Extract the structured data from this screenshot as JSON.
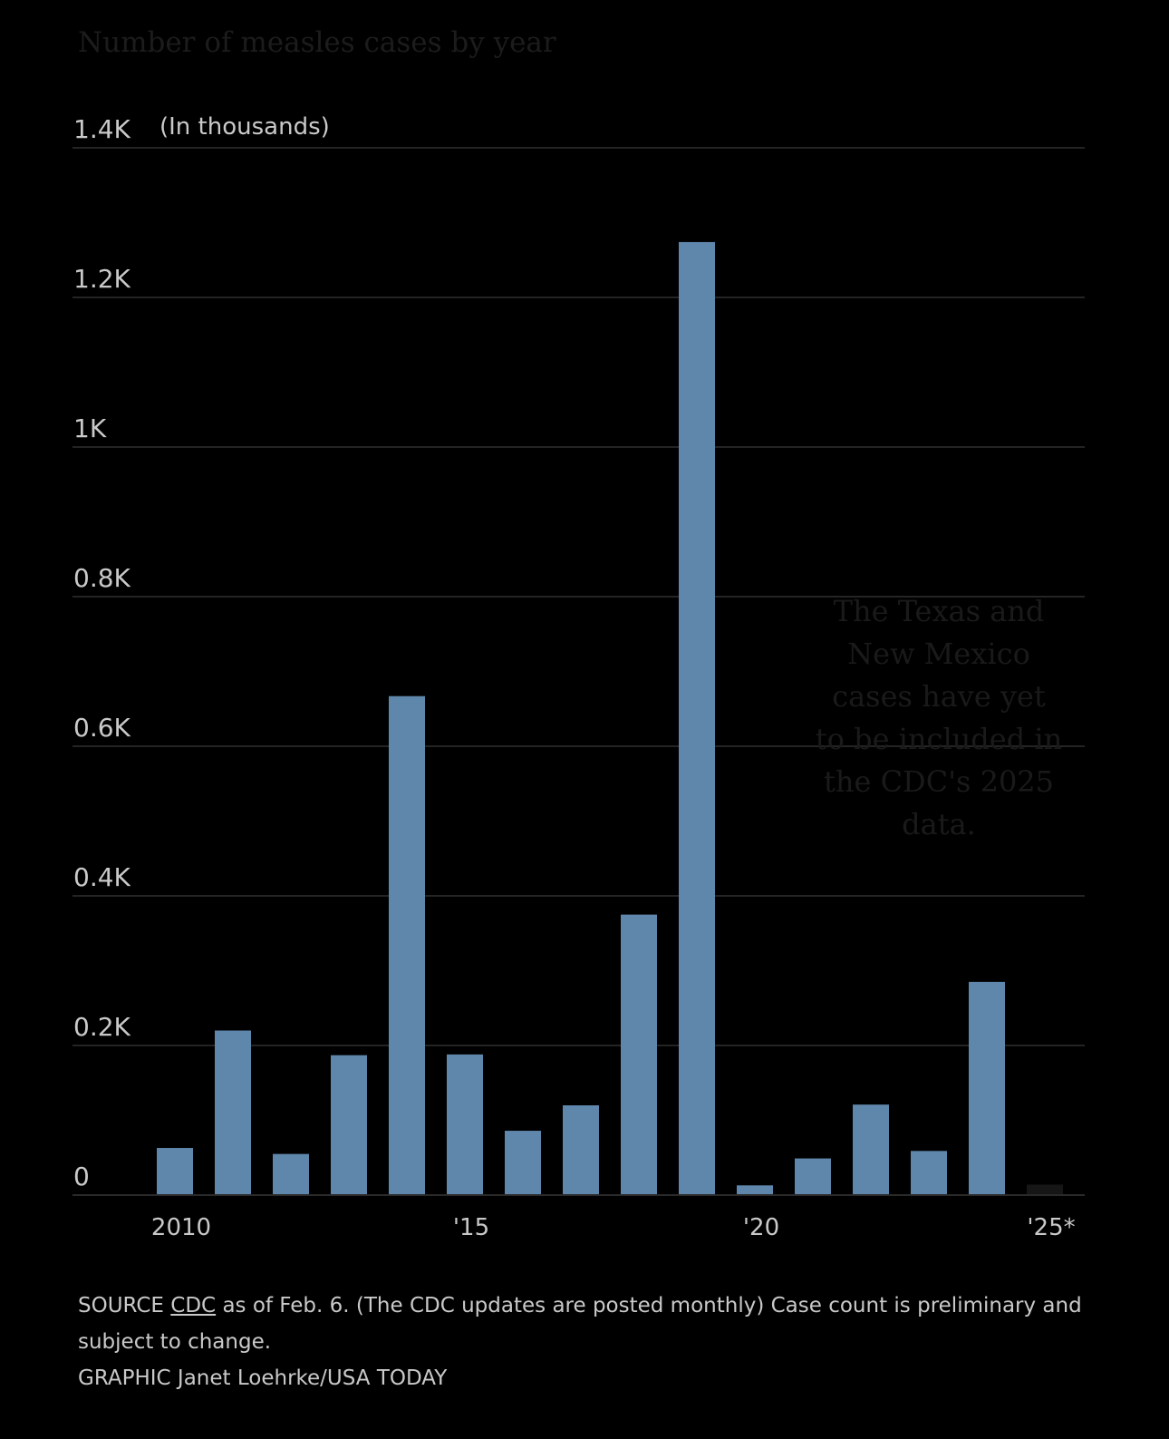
{
  "chart_data": {
    "type": "bar",
    "title": "Number of measles cases by year",
    "unit_label": "(In thousands)",
    "categories": [
      "2010",
      "2011",
      "2012",
      "2013",
      "2014",
      "2015",
      "2016",
      "2017",
      "2018",
      "2019",
      "2020",
      "2021",
      "2022",
      "2023",
      "2024",
      "2025"
    ],
    "values": [
      63,
      220,
      55,
      187,
      667,
      188,
      86,
      120,
      375,
      1274,
      13,
      49,
      121,
      59,
      285,
      14
    ],
    "ylim": [
      0,
      1400
    ],
    "yticks": [
      {
        "value": 0,
        "label": "0"
      },
      {
        "value": 200,
        "label": "0.2K"
      },
      {
        "value": 400,
        "label": "0.4K"
      },
      {
        "value": 600,
        "label": "0.6K"
      },
      {
        "value": 800,
        "label": "0.8K"
      },
      {
        "value": 1000,
        "label": "1K"
      },
      {
        "value": 1200,
        "label": "1.2K"
      },
      {
        "value": 1400,
        "label": "1.4K"
      }
    ],
    "xticks": [
      {
        "index": 0,
        "label": "2010"
      },
      {
        "index": 5,
        "label": "'15"
      },
      {
        "index": 10,
        "label": "'20"
      },
      {
        "index": 15,
        "label": "'25*"
      }
    ],
    "grid": true,
    "bar_color": "#5f86ab",
    "last_bar_color": "#161616",
    "annotation": {
      "lines": [
        "The Texas and",
        "New Mexico",
        "cases have yet",
        "to be included in",
        "the CDC's 2025",
        "data."
      ]
    }
  },
  "footer": {
    "source_prefix": "SOURCE",
    "source_link": "CDC",
    "source_text": "as of Feb. 6. (The CDC updates are posted monthly) Case count is preliminary and subject to change.",
    "graphic_credit": "GRAPHIC Janet Loehrke/USA TODAY"
  }
}
